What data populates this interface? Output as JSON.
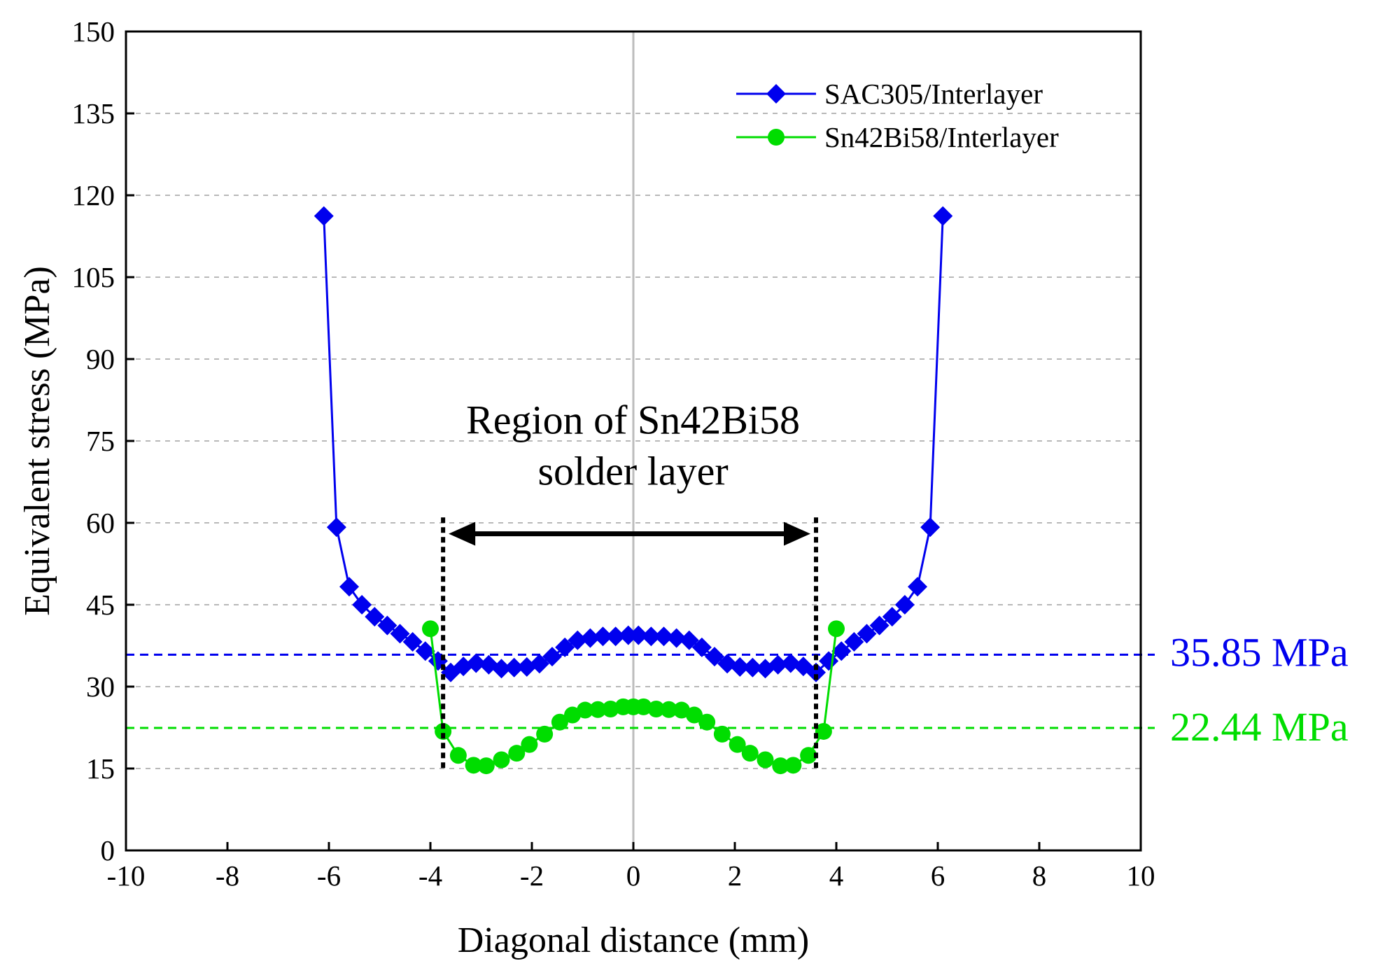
{
  "chart_data": {
    "type": "line",
    "title": "",
    "xlabel": "Diagonal distance (mm)",
    "ylabel": "Equivalent stress (MPa)",
    "xlim": [
      -10,
      10
    ],
    "ylim": [
      0,
      150
    ],
    "x_ticks": [
      "-10",
      "-8",
      "-6",
      "-4",
      "-2",
      "0",
      "2",
      "4",
      "6",
      "8",
      "10"
    ],
    "y_ticks": [
      "0",
      "15",
      "30",
      "45",
      "60",
      "75",
      "90",
      "105",
      "120",
      "135",
      "150"
    ],
    "grid": "horizontal dashed",
    "legend_position": "top-right",
    "series": [
      {
        "name": "SAC305/Interlayer",
        "color": "#0000ee",
        "marker": "diamond",
        "x": [
          -6.1,
          -5.85,
          -5.6,
          -5.35,
          -5.1,
          -4.85,
          -4.6,
          -4.35,
          -4.1,
          -3.85,
          -3.6,
          -3.35,
          -3.1,
          -2.85,
          -2.6,
          -2.35,
          -2.1,
          -1.85,
          -1.6,
          -1.35,
          -1.1,
          -0.85,
          -0.6,
          -0.35,
          -0.1,
          0.1,
          0.35,
          0.6,
          0.85,
          1.1,
          1.35,
          1.6,
          1.85,
          2.1,
          2.35,
          2.6,
          2.85,
          3.1,
          3.35,
          3.6,
          3.85,
          4.1,
          4.35,
          4.6,
          4.85,
          5.1,
          5.35,
          5.6,
          5.85,
          6.1
        ],
        "values": [
          116.2,
          59.2,
          48.3,
          45.0,
          42.8,
          41.2,
          39.7,
          38.2,
          36.5,
          34.7,
          32.6,
          33.7,
          34.3,
          34.0,
          33.3,
          33.5,
          33.6,
          34.2,
          35.5,
          37.2,
          38.5,
          38.9,
          39.2,
          39.2,
          39.4,
          39.4,
          39.2,
          39.2,
          38.9,
          38.5,
          37.2,
          35.5,
          34.2,
          33.6,
          33.5,
          33.3,
          34.0,
          34.3,
          33.7,
          32.6,
          34.7,
          36.5,
          38.2,
          39.7,
          41.2,
          42.8,
          45.0,
          48.3,
          59.2,
          116.2
        ]
      },
      {
        "name": "Sn42Bi58/Interlayer",
        "color": "#00dd00",
        "marker": "circle",
        "x": [
          -4.0,
          -3.75,
          -3.45,
          -3.15,
          -2.9,
          -2.6,
          -2.3,
          -2.05,
          -1.75,
          -1.45,
          -1.2,
          -0.95,
          -0.7,
          -0.45,
          -0.2,
          0.0,
          0.2,
          0.45,
          0.7,
          0.95,
          1.2,
          1.45,
          1.75,
          2.05,
          2.3,
          2.6,
          2.9,
          3.15,
          3.45,
          3.75,
          4.0
        ],
        "values": [
          40.6,
          21.8,
          17.4,
          15.6,
          15.5,
          16.6,
          17.8,
          19.4,
          21.3,
          23.5,
          24.8,
          25.7,
          25.8,
          25.9,
          26.3,
          26.3,
          26.3,
          25.9,
          25.8,
          25.7,
          24.8,
          23.5,
          21.3,
          19.4,
          17.8,
          16.6,
          15.5,
          15.6,
          17.4,
          21.8,
          40.6
        ]
      }
    ],
    "reference_lines": [
      {
        "label": "35.85 MPa",
        "value": 35.85,
        "color": "#0000ee",
        "style": "dashed"
      },
      {
        "label": "22.44 MPa",
        "value": 22.44,
        "color": "#00dd00",
        "style": "dashed"
      }
    ],
    "region": {
      "label_line1": "Region of Sn42Bi58",
      "label_line2": "solder layer",
      "x_start": -3.75,
      "x_end": 3.6,
      "y_bottom": 15,
      "y_top": 61,
      "arrow_y": 58
    }
  }
}
